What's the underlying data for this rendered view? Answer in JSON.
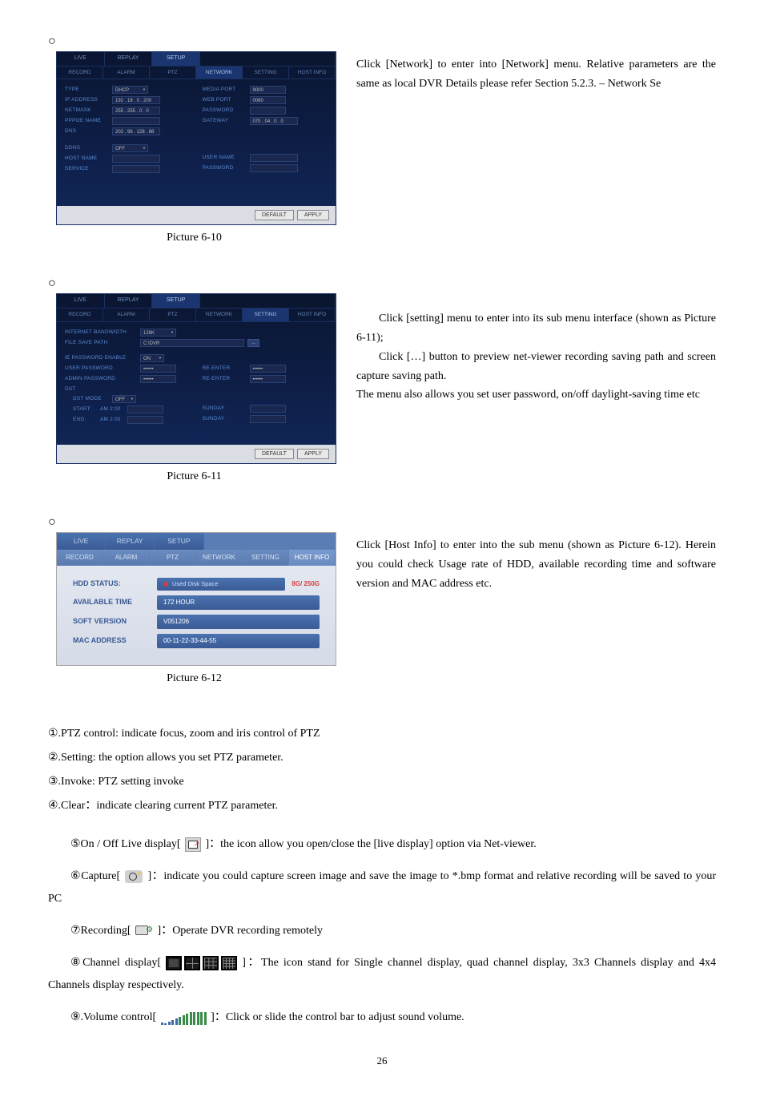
{
  "s1": {
    "tabs": [
      "LIVE",
      "REPLAY",
      "SETUP"
    ],
    "subtabs": [
      "RECORD",
      "ALARM",
      "PTZ",
      "NETWORK",
      "SETTING",
      "HOST INFO"
    ],
    "fields": {
      "type_lbl": "TYPE",
      "type_val": "DHCP",
      "ip_lbl": "IP ADDRESS",
      "ip_val": "192 . 18 . 0 . 200",
      "nm_lbl": "NETMASK",
      "nm_val": "255 . 255 . 0 . 0",
      "ppoe_lbl": "PPPOE NAME",
      "ppoe_val": "",
      "dns_lbl": "DNS",
      "dns_val": "202 . 96 . 128 . 68",
      "media_lbl": "MEDIA PORT",
      "media_val": "9000",
      "web_lbl": "WEB PORT",
      "web_val": "0080",
      "pw_lbl": "PASSWORD",
      "pw_val": "",
      "gw_lbl": "GATEWAY",
      "gw_val": "070 . 04 . 0 . 0",
      "ddns_lbl": "DDNS",
      "ddns_val": "OFF",
      "host_lbl": "HOST NAME",
      "host_val": "",
      "svc_lbl": "SERVICE",
      "svc_val": "",
      "user_lbl": "USER NAME",
      "user_val": "",
      "pw2_lbl": "PASSWORD",
      "pw2_val": ""
    },
    "btns": {
      "default": "DEFAULT",
      "apply": "APPLY"
    },
    "caption": "Picture 6-10",
    "desc": [
      "Click [Network] to enter into [Network] menu. Relative parameters are the same as local DVR Details please refer Section 5.2.3. – Network Se"
    ]
  },
  "s2": {
    "fields": {
      "bw_lbl": "INTERNET BANDWIDTH",
      "bw_val": "128K",
      "path_lbl": "FILE SAVE PATH",
      "path_val": "C:\\DVR",
      "ie_lbl": "IE PASSWORD ENABLE",
      "ie_val": "ON",
      "upw_lbl": "USER PASSWORD",
      "upw_val": "••••••",
      "apw_lbl": "ADMIN PASSWORD",
      "apw_val": "••••••",
      "re1_lbl": "RE-ENTER",
      "re1_val": "••••••",
      "re2_lbl": "RE-ENTER",
      "re2_val": "••••••",
      "dst_lbl": "DST",
      "dst_mode_lbl": "DST MODE",
      "dst_val": "OFF",
      "start_lbl": "START:",
      "start_tm": "AM 2:00",
      "start_day": "SUNDAY",
      "end_lbl": "END:",
      "end_tm": "AM 2:00",
      "end_day": "SUNDAY"
    },
    "browse": "...",
    "caption": "Picture 6-11",
    "desc": [
      "Click [setting] menu to enter into its sub menu interface (shown as Picture 6-11);",
      "Click […] button to preview net-viewer recording saving path and screen capture saving path.",
      "The menu also allows you set user password, on/off daylight-saving time etc"
    ]
  },
  "s3": {
    "tabs": [
      "LIVE",
      "REPLAY",
      "SETUP"
    ],
    "subtabs": [
      "RECORD",
      "ALARM",
      "PTZ",
      "NETWORK",
      "SETTING",
      "HOST INFO"
    ],
    "hdd_lbl": "HDD STATUS:",
    "hdd_bar": "Used Disk Space",
    "hdd_side": "8G/ 250G",
    "avail_lbl": "AVAILABLE TIME",
    "avail_val": "172 HOUR",
    "soft_lbl": "SOFT VERSION",
    "soft_val": "V051206",
    "mac_lbl": "MAC ADDRESS",
    "mac_val": "00-11-22-33-44-55",
    "caption": "Picture 6-12",
    "desc": [
      "Click [Host Info] to enter into the sub menu (shown as Picture 6-12). Herein you could check Usage rate of HDD, available recording time and software version and MAC address etc."
    ]
  },
  "bullets": {
    "b1": "①.PTZ control: indicate focus, zoom and iris control of PTZ",
    "b2": "②.Setting: the option allows you set PTZ parameter.",
    "b3": "③.Invoke: PTZ setting invoke",
    "b4": "④.Clear：indicate clearing current PTZ parameter."
  },
  "lines": {
    "l5a": "⑤On / Off Live display[ ",
    "l5b": " ]：the icon allow you open/close the [live display] option via Net-viewer.",
    "l6a": "⑥Capture[ ",
    "l6b": " ]：indicate you could capture screen image and save the image to *.bmp format and relative recording will be saved to your PC",
    "l7a": "⑦Recording[ ",
    "l7b": " ]：Operate DVR recording remotely",
    "l8a": "⑧Channel display[ ",
    "l8b": " ]：The icon stand for Single channel display, quad channel display, 3x3 Channels display and 4x4 Channels display respectively.",
    "l9a": "⑨.Volume control[ ",
    "l9b": " ]：Click or slide the control bar to adjust sound volume."
  },
  "page": "26",
  "vol_heights": [
    3,
    2,
    4,
    6,
    8,
    10,
    12,
    14,
    16,
    16,
    16,
    16,
    16
  ]
}
